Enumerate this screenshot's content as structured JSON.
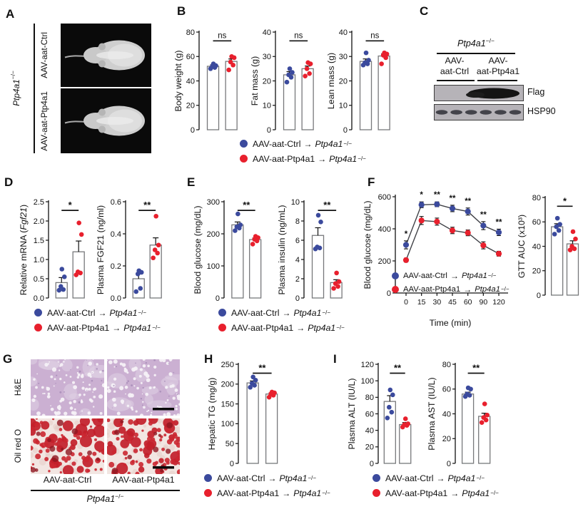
{
  "colors": {
    "ctrl": "#3b4a9d",
    "treat": "#e8202d",
    "bar_stroke": "#77787b",
    "axis": "#111111"
  },
  "legend": {
    "items": [
      {
        "color": "#3b4a9d",
        "label": "AAV-aat-Ctrl",
        "arrow": "→",
        "target": "Ptp4a1",
        "sup": "−/−"
      },
      {
        "color": "#e8202d",
        "label": "AAV-aat-Ptp4a1",
        "arrow": "→",
        "target": "Ptp4a1",
        "sup": "−/−"
      }
    ]
  },
  "panels": {
    "A": {
      "letter": "A",
      "genotype": "Ptp4a1",
      "sup": "−/−",
      "top_label": "AAV-aat-Ctrl",
      "bottom_label": "AAV-aat-Ptp4a1"
    },
    "B": {
      "letter": "B"
    },
    "C": {
      "letter": "C",
      "genotype": "Ptp4a1",
      "sup": "−/−",
      "lane1": [
        "AAV-",
        "aat-Ctrl"
      ],
      "lane2": [
        "AAV-",
        "aat-Ptp4a1"
      ],
      "blot1": "Flag",
      "blot2": "HSP90"
    },
    "D": {
      "letter": "D"
    },
    "E": {
      "letter": "E"
    },
    "F": {
      "letter": "F"
    },
    "G": {
      "letter": "G",
      "rows": [
        "H&E",
        "Oil red O"
      ],
      "cols": [
        "AAV-aat-Ctrl",
        "AAV-aat-Ptp4a1"
      ],
      "genotype": "Ptp4a1",
      "sup": "−/−"
    },
    "H": {
      "letter": "H"
    },
    "I": {
      "letter": "I"
    }
  },
  "chart_data": [
    {
      "id": "body_weight",
      "panel": "B",
      "type": "bar",
      "ylabel": [
        {
          "t": "Body weight (g)",
          "i": 0
        }
      ],
      "ylim": [
        0,
        80
      ],
      "yticks": [
        "0",
        "20",
        "40",
        "60",
        "80"
      ],
      "sig": "ns",
      "categories": [
        "AAV-aat-Ctrl",
        "AAV-aat-Ptp4a1"
      ],
      "groups": [
        {
          "name": "AAV-aat-Ctrl",
          "mean": 52,
          "sem": 1.2,
          "points": [
            50,
            51,
            52,
            52.5,
            54
          ]
        },
        {
          "name": "AAV-aat-Ptp4a1",
          "mean": 56,
          "sem": 2,
          "points": [
            49,
            53,
            55.5,
            59,
            60
          ]
        }
      ]
    },
    {
      "id": "fat_mass",
      "panel": "B",
      "type": "bar",
      "ylabel": [
        {
          "t": "Fat mass (g)",
          "i": 0
        }
      ],
      "ylim": [
        0,
        40
      ],
      "yticks": [
        "0",
        "10",
        "20",
        "30",
        "40"
      ],
      "sig": "ns",
      "categories": [
        "AAV-aat-Ctrl",
        "AAV-aat-Ptp4a1"
      ],
      "groups": [
        {
          "name": "AAV-aat-Ctrl",
          "mean": 22.5,
          "sem": 1.3,
          "points": [
            19.5,
            21.5,
            22.5,
            23.5,
            25
          ]
        },
        {
          "name": "AAV-aat-Ptp4a1",
          "mean": 25,
          "sem": 1.1,
          "points": [
            22,
            23,
            25,
            27,
            27.5
          ]
        }
      ]
    },
    {
      "id": "lean_mass",
      "panel": "B",
      "type": "bar",
      "ylabel": [
        {
          "t": "Lean mass (g)",
          "i": 0
        }
      ],
      "ylim": [
        0,
        40
      ],
      "yticks": [
        "0",
        "10",
        "20",
        "30",
        "40"
      ],
      "sig": "ns",
      "categories": [
        "AAV-aat-Ctrl",
        "AAV-aat-Ptp4a1"
      ],
      "groups": [
        {
          "name": "AAV-aat-Ctrl",
          "mean": 28,
          "sem": 1,
          "points": [
            26.5,
            27,
            27.5,
            28.5,
            31.5
          ]
        },
        {
          "name": "AAV-aat-Ptp4a1",
          "mean": 30.2,
          "sem": 0.9,
          "points": [
            27,
            29.5,
            30.5,
            31,
            31.5
          ]
        }
      ]
    },
    {
      "id": "fgf21_mrna",
      "panel": "D",
      "type": "bar",
      "ylabel": [
        {
          "t": "Relative mRNA (",
          "i": 0
        },
        {
          "t": "Fgf21",
          "i": 1
        },
        {
          "t": ")",
          "i": 0
        }
      ],
      "ylim": [
        0,
        2.5
      ],
      "yticks": [
        "0.0",
        "0.5",
        "1.0",
        "1.5",
        "2.0",
        "2.5"
      ],
      "sig": "*",
      "categories": [
        "AAV-aat-Ctrl",
        "AAV-aat-Ptp4a1"
      ],
      "groups": [
        {
          "name": "AAV-aat-Ctrl",
          "mean": 0.4,
          "sem": 0.13,
          "points": [
            0.2,
            0.22,
            0.3,
            0.55,
            0.75
          ]
        },
        {
          "name": "AAV-aat-Ptp4a1",
          "mean": 1.2,
          "sem": 0.28,
          "points": [
            0.6,
            0.65,
            0.68,
            1.65,
            1.95
          ]
        }
      ]
    },
    {
      "id": "fgf21_plasma",
      "panel": "D",
      "type": "bar",
      "ylabel": [
        {
          "t": "Plasma FGF21 (ng/ml)",
          "i": 0
        }
      ],
      "ylim": [
        0,
        0.6
      ],
      "yticks": [
        "0.0",
        "0.2",
        "0.4",
        "0.6"
      ],
      "sig": "**",
      "categories": [
        "AAV-aat-Ctrl",
        "AAV-aat-Ptp4a1"
      ],
      "groups": [
        {
          "name": "AAV-aat-Ctrl",
          "mean": 0.12,
          "sem": 0.03,
          "points": [
            0.04,
            0.06,
            0.15,
            0.16,
            0.17
          ]
        },
        {
          "name": "AAV-aat-Ptp4a1",
          "mean": 0.33,
          "sem": 0.045,
          "points": [
            0.25,
            0.28,
            0.3,
            0.33,
            0.51
          ]
        }
      ]
    },
    {
      "id": "blood_glucose_bar",
      "panel": "E",
      "type": "bar",
      "ylabel": [
        {
          "t": "Blood glucose (mg/dL)",
          "i": 0
        }
      ],
      "ylim": [
        0,
        300
      ],
      "yticks": [
        "0",
        "100",
        "200",
        "300"
      ],
      "sig": "**",
      "categories": [
        "AAV-aat-Ctrl",
        "AAV-aat-Ptp4a1"
      ],
      "groups": [
        {
          "name": "AAV-aat-Ctrl",
          "mean": 228,
          "sem": 9,
          "points": [
            210,
            218,
            222,
            228,
            262
          ]
        },
        {
          "name": "AAV-aat-Ptp4a1",
          "mean": 182,
          "sem": 5,
          "points": [
            168,
            178,
            183,
            188,
            192
          ]
        }
      ]
    },
    {
      "id": "plasma_insulin",
      "panel": "E",
      "type": "bar",
      "ylabel": [
        {
          "t": "Plasma insulin (ng/mL)",
          "i": 0
        }
      ],
      "ylim": [
        0,
        10
      ],
      "yticks": [
        "0",
        "2",
        "4",
        "6",
        "8",
        "10"
      ],
      "sig": "**",
      "categories": [
        "AAV-aat-Ctrl",
        "AAV-aat-Ptp4a1"
      ],
      "groups": [
        {
          "name": "AAV-aat-Ctrl",
          "mean": 6.5,
          "sem": 0.8,
          "points": [
            5.1,
            5.2,
            5.3,
            7.9,
            8.6
          ]
        },
        {
          "name": "AAV-aat-Ptp4a1",
          "mean": 1.6,
          "sem": 0.3,
          "points": [
            1.0,
            1.2,
            1.5,
            1.7,
            2.6
          ]
        }
      ]
    },
    {
      "id": "gtt",
      "panel": "F",
      "type": "line",
      "ylabel": [
        {
          "t": "Blood glucose (mg/dL)",
          "i": 0
        }
      ],
      "xlabel": "Time (min)",
      "ylim": [
        0,
        600
      ],
      "yticks": [
        "0",
        "200",
        "400",
        "600"
      ],
      "x": [
        "0",
        "15",
        "30",
        "45",
        "60",
        "90",
        "120"
      ],
      "series": [
        {
          "name": "AAV-aat-Ctrl",
          "values": [
            300,
            550,
            553,
            527,
            508,
            420,
            378
          ],
          "sem": [
            25,
            18,
            15,
            20,
            22,
            25,
            20
          ]
        },
        {
          "name": "AAV-aat-Ptp4a1",
          "values": [
            205,
            452,
            445,
            390,
            375,
            297,
            245
          ],
          "sem": [
            12,
            25,
            22,
            20,
            18,
            22,
            15
          ]
        }
      ],
      "sig_per_point": [
        "*",
        "*",
        "**",
        "**",
        "**",
        "**",
        "**"
      ]
    },
    {
      "id": "gtt_auc",
      "panel": "F",
      "type": "bar",
      "ylabel": [
        {
          "t": "GTT AUC (x10³)",
          "i": 0
        }
      ],
      "ylim": [
        0,
        80
      ],
      "yticks": [
        "0",
        "20",
        "40",
        "60",
        "80"
      ],
      "sig": "*",
      "categories": [
        "AAV-aat-Ctrl",
        "AAV-aat-Ptp4a1"
      ],
      "groups": [
        {
          "name": "AAV-aat-Ctrl",
          "mean": 56,
          "sem": 2.5,
          "points": [
            50,
            53,
            56,
            58,
            63
          ]
        },
        {
          "name": "AAV-aat-Ptp4a1",
          "mean": 42,
          "sem": 2.5,
          "points": [
            37,
            38,
            40,
            46,
            52
          ]
        }
      ]
    },
    {
      "id": "hepatic_tg",
      "panel": "H",
      "type": "bar",
      "ylabel": [
        {
          "t": "Hepatic TG (mg/g)",
          "i": 0
        }
      ],
      "ylim": [
        0,
        250
      ],
      "yticks": [
        "0",
        "50",
        "100",
        "150",
        "200",
        "250"
      ],
      "sig": "**",
      "categories": [
        "AAV-aat-Ctrl",
        "AAV-aat-Ptp4a1"
      ],
      "groups": [
        {
          "name": "AAV-aat-Ctrl",
          "mean": 203,
          "sem": 5,
          "points": [
            192,
            197,
            202,
            210,
            218
          ]
        },
        {
          "name": "AAV-aat-Ptp4a1",
          "mean": 175,
          "sem": 3,
          "points": [
            167,
            172,
            175,
            178,
            180
          ]
        }
      ]
    },
    {
      "id": "plasma_alt",
      "panel": "I",
      "type": "bar",
      "ylabel": [
        {
          "t": "Plasma ALT (IU/L)",
          "i": 0
        }
      ],
      "ylim": [
        0,
        120
      ],
      "yticks": [
        "0",
        "20",
        "40",
        "60",
        "80",
        "100",
        "120"
      ],
      "sig": "**",
      "categories": [
        "AAV-aat-Ctrl",
        "AAV-aat-Ptp4a1"
      ],
      "groups": [
        {
          "name": "AAV-aat-Ctrl",
          "mean": 75,
          "sem": 7,
          "points": [
            55,
            62,
            68,
            83,
            89
          ]
        },
        {
          "name": "AAV-aat-Ptp4a1",
          "mean": 47,
          "sem": 2.5,
          "points": [
            44,
            46,
            47,
            48,
            54
          ]
        }
      ]
    },
    {
      "id": "plasma_ast",
      "panel": "I",
      "type": "bar",
      "ylabel": [
        {
          "t": "Plasma AST (IU/L)",
          "i": 0
        }
      ],
      "ylim": [
        0,
        80
      ],
      "yticks": [
        "0",
        "20",
        "40",
        "60",
        "80"
      ],
      "sig": "**",
      "categories": [
        "AAV-aat-Ctrl",
        "AAV-aat-Ptp4a1"
      ],
      "groups": [
        {
          "name": "AAV-aat-Ctrl",
          "mean": 56,
          "sem": 1.5,
          "points": [
            54,
            55,
            56,
            60,
            61
          ]
        },
        {
          "name": "AAV-aat-Ptp4a1",
          "mean": 38,
          "sem": 2.5,
          "points": [
            33,
            35,
            37,
            39,
            48
          ]
        }
      ]
    }
  ]
}
